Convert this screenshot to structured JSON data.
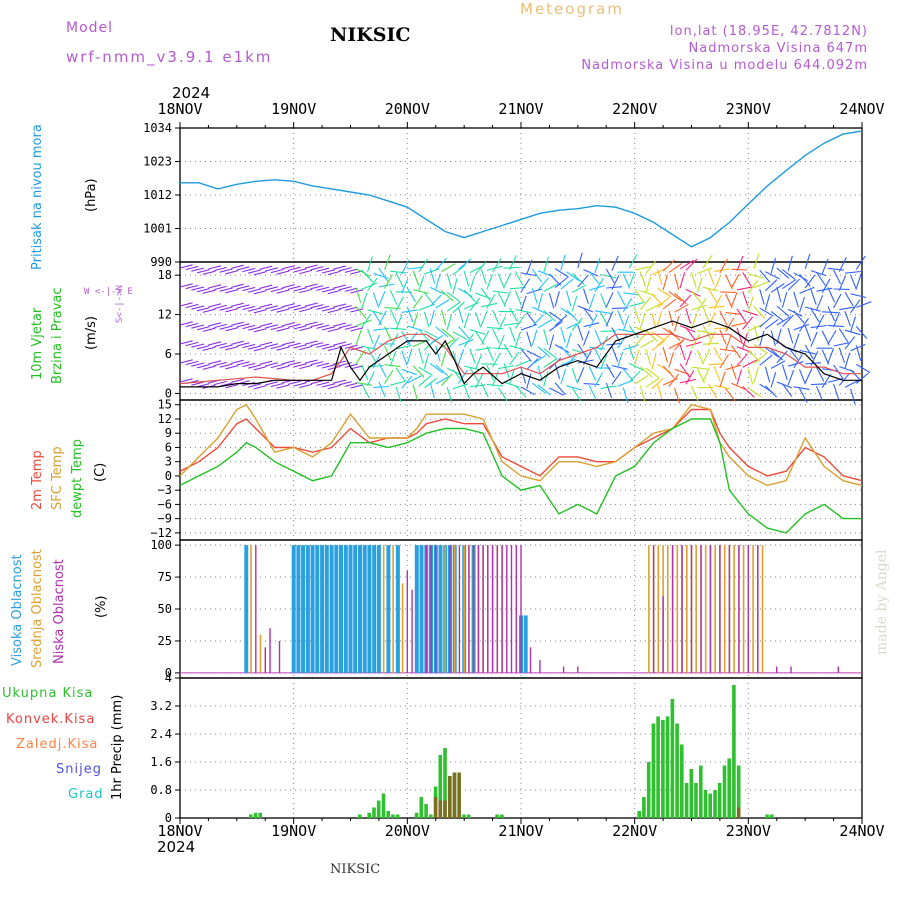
{
  "header": {
    "model_label": "Model",
    "model_name": "wrf-nmm_v3.9.1 e1km",
    "station": "NIKSIC",
    "meteogram": "Meteogram",
    "lonlat": "lon,lat (18.95E, 42.7812N)",
    "elevation": "Nadmorska Visina 647m",
    "model_elevation": "Nadmorska Visina u modelu 644.092m",
    "year_top": "2024",
    "year_bottom": "2024",
    "footer_station": "NIKSIC",
    "credit": "made by Angel"
  },
  "colors": {
    "pressure": "#1e9be0",
    "temp2m": "#ee4a3a",
    "sfc": "#d8a030",
    "dewpt": "#22c022",
    "purple": "#b45ad2",
    "cloud_high": "#2aa0e0",
    "cloud_mid": "#e0a030",
    "cloud_low": "#b030b0",
    "precip_total": "#2ec02e",
    "precip_conv": "#c03020",
    "precip_ice": "#ff8040",
    "precip_snow": "#5050e0",
    "precip_grad": "#20c0c0"
  },
  "chart_data": [
    {
      "type": "line",
      "panel": "pressure",
      "categories": [
        "18NOV",
        "19NOV",
        "20NOV",
        "21NOV",
        "22NOV",
        "23NOV",
        "24NOV"
      ],
      "ylabel_name": "Pritisak na nivou mora",
      "ylabel_unit": "(hPa)",
      "yticks": [
        "1034",
        "1023",
        "1012",
        "1001",
        "990"
      ],
      "ylim": [
        990,
        1034
      ],
      "grid": true,
      "series": [
        {
          "x": [
            0,
            4,
            8,
            12,
            16,
            20,
            24,
            28,
            32,
            36,
            40,
            44,
            48,
            52,
            56,
            60,
            64,
            68,
            72,
            76,
            80,
            84,
            88,
            92,
            96,
            100,
            104,
            108,
            112,
            116,
            120,
            124,
            128,
            132,
            136,
            140,
            144
          ],
          "values": [
            1016,
            1016,
            1014,
            1015.5,
            1016.5,
            1017,
            1016.5,
            1015,
            1014,
            1013,
            1012,
            1010,
            1008,
            1004,
            1000,
            998,
            1000,
            1002,
            1004,
            1006,
            1007,
            1007.5,
            1008.5,
            1008,
            1006,
            1003,
            999,
            995,
            998,
            1003,
            1009,
            1015,
            1020,
            1025,
            1029,
            1032,
            1033
          ]
        }
      ]
    },
    {
      "type": "line",
      "panel": "wind",
      "categories": [
        "18NOV",
        "19NOV",
        "20NOV",
        "21NOV",
        "22NOV",
        "23NOV",
        "24NOV"
      ],
      "ylabel_name1": "10m Vjetar",
      "ylabel_name2": "Brzina i Pravac",
      "ylabel_unit": "(m/s)",
      "compass": "W <-|-> E",
      "compass_ns": "S<-|->N",
      "yticks": [
        "18",
        "12",
        "6",
        "0"
      ],
      "ylim": [
        -1,
        20
      ],
      "grid": true,
      "series": [
        {
          "name": "speed",
          "x": [
            0,
            4,
            8,
            12,
            16,
            20,
            24,
            28,
            32,
            34,
            36,
            38,
            40,
            44,
            48,
            52,
            54,
            56,
            58,
            60,
            62,
            64,
            68,
            72,
            76,
            80,
            84,
            88,
            92,
            96,
            100,
            104,
            108,
            112,
            116,
            120,
            124,
            128,
            132,
            136,
            140,
            144
          ],
          "values": [
            1,
            1,
            1,
            1.5,
            1.5,
            2,
            2,
            2,
            2,
            7,
            4,
            2,
            4,
            6,
            8,
            8,
            6,
            8,
            5,
            1.5,
            3,
            4,
            1.5,
            3,
            2,
            4,
            5,
            4,
            8,
            9,
            10,
            11,
            10,
            11,
            10,
            8,
            9,
            7,
            6,
            3,
            2,
            2
          ]
        },
        {
          "name": "gust",
          "x": [
            0,
            8,
            16,
            24,
            28,
            32,
            36,
            40,
            44,
            48,
            52,
            56,
            60,
            64,
            68,
            72,
            76,
            80,
            84,
            88,
            92,
            96,
            100,
            104,
            108,
            112,
            116,
            120,
            124,
            128,
            132,
            136,
            140,
            144
          ],
          "values": [
            1.5,
            2,
            2.5,
            2,
            2,
            3,
            7,
            6,
            8,
            9,
            9,
            7,
            3,
            3,
            3,
            4,
            3,
            5,
            6,
            7,
            9,
            9,
            9,
            9,
            8,
            9,
            9,
            7,
            7,
            6,
            4,
            4,
            3,
            3
          ]
        }
      ]
    },
    {
      "type": "line",
      "panel": "temperature",
      "categories": [
        "18NOV",
        "19NOV",
        "20NOV",
        "21NOV",
        "22NOV",
        "23NOV",
        "24NOV"
      ],
      "ylabel_name1": "2m Temp",
      "ylabel_name2": "SFC Temp",
      "ylabel_name3": "dewpt Temp",
      "ylabel_unit": "(C)",
      "yticks": [
        "15",
        "12",
        "9",
        "6",
        "3",
        "0",
        "−3",
        "−6",
        "−9",
        "−12"
      ],
      "ylim": [
        -13.5,
        16
      ],
      "grid": true,
      "series": [
        {
          "name": "2m Temp",
          "x": [
            0,
            4,
            8,
            12,
            14,
            16,
            20,
            24,
            28,
            32,
            36,
            40,
            44,
            48,
            50,
            52,
            56,
            60,
            64,
            68,
            72,
            76,
            80,
            84,
            88,
            92,
            96,
            100,
            104,
            108,
            112,
            114,
            116,
            120,
            124,
            128,
            132,
            136,
            140,
            144
          ],
          "values": [
            1,
            3,
            6,
            11,
            12,
            10,
            6,
            6,
            5,
            6,
            10,
            7,
            8,
            8,
            9,
            11,
            12,
            11,
            11,
            4,
            2,
            0,
            4,
            4,
            3,
            3,
            6,
            8,
            10,
            14,
            14,
            9,
            6,
            2,
            0,
            1,
            6,
            4,
            0,
            -1
          ]
        },
        {
          "name": "SFC Temp",
          "x": [
            0,
            4,
            8,
            12,
            14,
            16,
            20,
            24,
            28,
            32,
            36,
            40,
            44,
            48,
            50,
            52,
            56,
            60,
            64,
            68,
            72,
            76,
            80,
            84,
            88,
            92,
            96,
            100,
            104,
            108,
            112,
            114,
            116,
            120,
            124,
            128,
            132,
            136,
            140,
            144
          ],
          "values": [
            0,
            4,
            8,
            14,
            15,
            12,
            5,
            6,
            4,
            7,
            13,
            8,
            8,
            8,
            10,
            13,
            13,
            13,
            12,
            3,
            0,
            -1,
            3,
            3,
            2,
            3,
            6,
            9,
            10,
            15,
            14,
            7,
            4,
            0,
            -2,
            -1,
            8,
            2,
            -1,
            -2
          ]
        },
        {
          "name": "dewpt Temp",
          "x": [
            0,
            4,
            8,
            12,
            14,
            16,
            20,
            24,
            28,
            32,
            36,
            40,
            44,
            48,
            52,
            56,
            60,
            64,
            68,
            72,
            76,
            80,
            84,
            88,
            92,
            96,
            100,
            104,
            108,
            112,
            114,
            116,
            120,
            124,
            128,
            132,
            136,
            140,
            144
          ],
          "values": [
            -2,
            0,
            2,
            5,
            7,
            6,
            3,
            1,
            -1,
            0,
            7,
            7,
            6,
            7,
            9,
            10,
            10,
            9,
            0,
            -3,
            -2,
            -8,
            -6,
            -8,
            0,
            2,
            7,
            10,
            12,
            12,
            7,
            -3,
            -8,
            -11,
            -12,
            -8,
            -6,
            -9,
            -9
          ]
        }
      ]
    },
    {
      "type": "bar",
      "panel": "clouds",
      "categories": [
        "18NOV",
        "19NOV",
        "20NOV",
        "21NOV",
        "22NOV",
        "23NOV",
        "24NOV"
      ],
      "ylabel_name1": "Visoka Oblacnost",
      "ylabel_name2": "Srednja Oblacnost",
      "ylabel_name3": "Niska Oblacnost",
      "ylabel_unit": "(%)",
      "yticks": [
        "100",
        "75",
        "50",
        "25",
        "0"
      ],
      "ylim": [
        0,
        100
      ],
      "grid": true,
      "series": [
        {
          "name": "Visoka Oblacnost",
          "x": [
            14,
            24,
            25,
            26,
            27,
            28,
            29,
            30,
            31,
            32,
            33,
            34,
            35,
            36,
            37,
            38,
            39,
            40,
            41,
            42,
            44,
            46,
            50,
            51,
            52,
            53,
            54,
            55,
            56,
            57,
            58,
            60,
            62,
            72,
            73
          ],
          "values": [
            100,
            100,
            100,
            100,
            100,
            100,
            100,
            100,
            100,
            100,
            100,
            100,
            100,
            100,
            100,
            100,
            100,
            100,
            100,
            100,
            100,
            100,
            100,
            100,
            100,
            100,
            100,
            100,
            100,
            100,
            100,
            100,
            100,
            45,
            45
          ]
        },
        {
          "name": "Srednja Oblacnost",
          "x": [
            15,
            17,
            43,
            45,
            47,
            56,
            58,
            60,
            61,
            62,
            63,
            64,
            65,
            66,
            67,
            68,
            99,
            100,
            101,
            102,
            103,
            104,
            105,
            106,
            107,
            108,
            109,
            110,
            111,
            112,
            113,
            114,
            115,
            116,
            117,
            118,
            119,
            120,
            121,
            122,
            123
          ],
          "values": [
            100,
            30,
            100,
            100,
            70,
            100,
            100,
            100,
            100,
            100,
            100,
            100,
            100,
            100,
            100,
            100,
            100,
            100,
            100,
            100,
            100,
            100,
            100,
            100,
            100,
            100,
            100,
            100,
            100,
            100,
            100,
            100,
            100,
            100,
            100,
            100,
            100,
            30,
            100,
            100,
            100
          ]
        },
        {
          "name": "Niska Oblacnost",
          "x": [
            16,
            18,
            19,
            21,
            48,
            49,
            52,
            53,
            54,
            57,
            59,
            61,
            62,
            63,
            64,
            65,
            66,
            67,
            68,
            69,
            70,
            71,
            72,
            74,
            76,
            81,
            84,
            100,
            102,
            104,
            106,
            108,
            110,
            112,
            114,
            116,
            118,
            120,
            122,
            126,
            129,
            139
          ],
          "values": [
            100,
            20,
            35,
            25,
            80,
            65,
            100,
            100,
            100,
            100,
            100,
            100,
            100,
            100,
            100,
            100,
            100,
            100,
            100,
            100,
            100,
            100,
            100,
            20,
            10,
            5,
            5,
            100,
            60,
            100,
            100,
            100,
            100,
            100,
            100,
            100,
            100,
            100,
            100,
            5,
            5,
            5
          ]
        }
      ]
    },
    {
      "type": "bar",
      "panel": "precip",
      "categories": [
        "18NOV",
        "19NOV",
        "20NOV",
        "21NOV",
        "22NOV",
        "23NOV",
        "24NOV"
      ],
      "ylabel_unit": "1hr Precip (mm)",
      "legend": [
        "Ukupna Kisa",
        "Konvek.Kisa",
        "Zaledj.Kisa",
        "Snijeg",
        "Grad"
      ],
      "yticks": [
        "4",
        "3.2",
        "2.4",
        "1.6",
        "0.8",
        "0"
      ],
      "ylim": [
        0,
        4
      ],
      "grid": true,
      "series": [
        {
          "name": "Ukupna Kisa",
          "x": [
            15,
            16,
            17,
            38,
            40,
            41,
            42,
            43,
            44,
            45,
            46,
            50,
            51,
            52,
            53,
            54,
            55,
            56,
            57,
            58,
            59,
            60,
            61,
            67,
            68,
            97,
            98,
            99,
            100,
            101,
            102,
            103,
            104,
            105,
            106,
            107,
            108,
            109,
            110,
            111,
            112,
            113,
            114,
            115,
            116,
            117,
            118,
            124,
            125
          ],
          "values": [
            0.1,
            0.15,
            0.15,
            0.1,
            0.15,
            0.3,
            0.5,
            0.7,
            0.2,
            0.1,
            0.1,
            0.15,
            0.6,
            0.4,
            0.1,
            0.9,
            1.8,
            2.0,
            1.2,
            1.3,
            1.3,
            0.1,
            0.1,
            0.1,
            0.1,
            0.2,
            0.6,
            1.6,
            2.7,
            2.9,
            2.8,
            2.9,
            3.4,
            2.7,
            2.1,
            1.0,
            1.4,
            1.0,
            1.5,
            0.8,
            0.7,
            0.8,
            1.0,
            1.5,
            1.7,
            3.8,
            1.5,
            0.1,
            0.1
          ]
        },
        {
          "name": "Konvek.Kisa",
          "x": [
            54,
            55,
            56,
            57,
            58,
            59,
            118
          ],
          "values": [
            0.6,
            0.5,
            0.5,
            1.2,
            1.3,
            1.3,
            0.3
          ]
        }
      ]
    }
  ]
}
